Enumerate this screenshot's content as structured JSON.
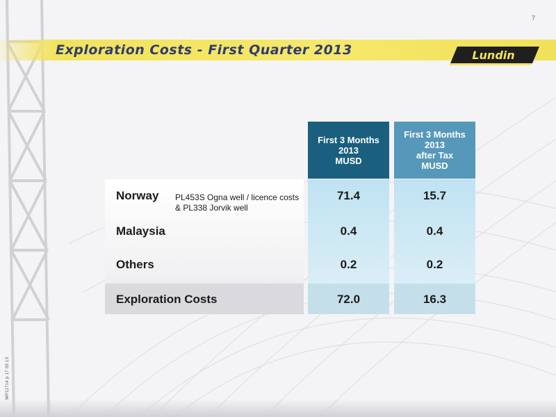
{
  "page_number": "7",
  "title": "Exploration Costs - First Quarter 2013",
  "logo_text": "Lundin",
  "footer_code": "WP11714 p 17 05 13",
  "table": {
    "columns": [
      {
        "lines": [
          "First 3 Months",
          "2013",
          "MUSD"
        ]
      },
      {
        "lines": [
          "First 3 Months",
          "2013",
          "after Tax",
          "MUSD"
        ]
      }
    ],
    "rows": [
      {
        "label": "Norway",
        "description": "PL453S Ogna well / licence costs & PL338 Jorvik well",
        "values": [
          "71.4",
          "15.7"
        ]
      },
      {
        "label": "Malaysia",
        "description": "",
        "values": [
          "0.4",
          "0.4"
        ]
      },
      {
        "label": "Others",
        "description": "",
        "values": [
          "0.2",
          "0.2"
        ]
      }
    ],
    "total": {
      "label": "Exploration Costs",
      "values": [
        "72.0",
        "16.3"
      ]
    }
  },
  "colors": {
    "title_band": "#f2e35c",
    "title_text": "#2f3c70",
    "header_col_1": "#1b5f7e",
    "header_col_2": "#5698ba",
    "value_column": "#cfe9f4"
  }
}
